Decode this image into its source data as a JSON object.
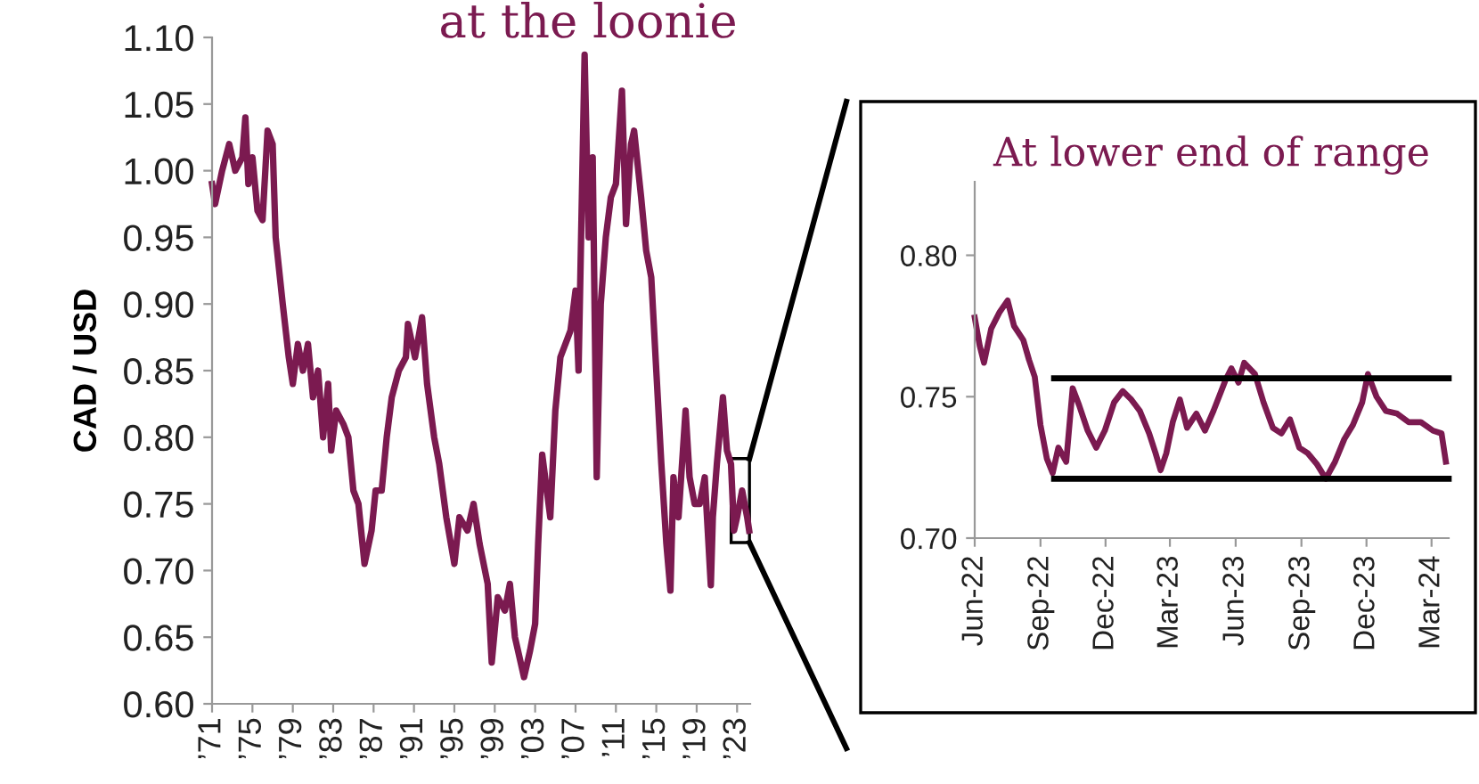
{
  "chart_data": [
    {
      "type": "line",
      "title": "at the loonie",
      "ylabel": "CAD / USD",
      "grid": false,
      "legend": false,
      "marker": "none",
      "line_style": "solid",
      "xlim": [
        1971,
        2024.3
      ],
      "ylim": [
        0.6,
        1.1
      ],
      "xticks": [
        {
          "value": 1971,
          "label": "’71"
        },
        {
          "value": 1975,
          "label": "’75"
        },
        {
          "value": 1979,
          "label": "’79"
        },
        {
          "value": 1983,
          "label": "’83"
        },
        {
          "value": 1987,
          "label": "’87"
        },
        {
          "value": 1991,
          "label": "’91"
        },
        {
          "value": 1995,
          "label": "’95"
        },
        {
          "value": 1999,
          "label": "’99"
        },
        {
          "value": 2003,
          "label": "’03"
        },
        {
          "value": 2007,
          "label": "’07"
        },
        {
          "value": 2011,
          "label": "’11"
        },
        {
          "value": 2015,
          "label": "’15"
        },
        {
          "value": 2019,
          "label": "’19"
        },
        {
          "value": 2023,
          "label": "’23"
        }
      ],
      "yticks": [
        {
          "value": 0.6,
          "label": "0.60"
        },
        {
          "value": 0.65,
          "label": "0.65"
        },
        {
          "value": 0.7,
          "label": "0.70"
        },
        {
          "value": 0.75,
          "label": "0.75"
        },
        {
          "value": 0.8,
          "label": "0.80"
        },
        {
          "value": 0.85,
          "label": "0.85"
        },
        {
          "value": 0.9,
          "label": "0.90"
        },
        {
          "value": 0.95,
          "label": "0.95"
        },
        {
          "value": 1.0,
          "label": "1.00"
        },
        {
          "value": 1.05,
          "label": "1.05"
        },
        {
          "value": 1.1,
          "label": "1.10"
        }
      ],
      "series": [
        {
          "color": "#7b1a50",
          "x": [
            1971.0,
            1971.3,
            1972.0,
            1972.7,
            1973.3,
            1974.0,
            1974.3,
            1974.6,
            1975.0,
            1975.5,
            1976.0,
            1976.5,
            1977.0,
            1977.3,
            1978.0,
            1978.6,
            1979.0,
            1979.5,
            1980.0,
            1980.5,
            1981.0,
            1981.5,
            1982.0,
            1982.5,
            1982.8,
            1983.3,
            1984.0,
            1984.5,
            1985.0,
            1985.5,
            1986.1,
            1986.8,
            1987.2,
            1987.8,
            1988.3,
            1988.8,
            1989.5,
            1990.2,
            1990.4,
            1991.1,
            1991.8,
            1992.3,
            1993.0,
            1993.5,
            1994.2,
            1995.0,
            1995.5,
            1996.3,
            1996.9,
            1997.5,
            1998.3,
            1998.7,
            1999.3,
            2000.0,
            2000.5,
            2001.0,
            2001.9,
            2002.5,
            2003.0,
            2003.3,
            2003.7,
            2004.5,
            2005.0,
            2005.5,
            2006.5,
            2007.0,
            2007.3,
            2007.9,
            2008.3,
            2008.7,
            2009.1,
            2009.5,
            2010.0,
            2010.5,
            2011.0,
            2011.6,
            2012.0,
            2012.5,
            2012.8,
            2013.5,
            2014.0,
            2014.5,
            2015.0,
            2015.5,
            2016.0,
            2016.4,
            2016.7,
            2017.2,
            2017.9,
            2018.3,
            2018.8,
            2019.3,
            2019.8,
            2020.4,
            2020.6,
            2021.0,
            2021.6,
            2022.0,
            2022.4,
            2022.7,
            2023.0,
            2023.5,
            2024.0,
            2024.2
          ],
          "values": [
            0.99,
            0.975,
            1.0,
            1.02,
            1.0,
            1.01,
            1.04,
            0.99,
            1.01,
            0.97,
            0.963,
            1.03,
            1.02,
            0.95,
            0.9,
            0.86,
            0.84,
            0.87,
            0.85,
            0.87,
            0.83,
            0.85,
            0.8,
            0.84,
            0.79,
            0.82,
            0.81,
            0.8,
            0.76,
            0.75,
            0.705,
            0.73,
            0.76,
            0.76,
            0.8,
            0.83,
            0.85,
            0.86,
            0.885,
            0.86,
            0.89,
            0.84,
            0.8,
            0.78,
            0.74,
            0.705,
            0.74,
            0.73,
            0.75,
            0.72,
            0.69,
            0.631,
            0.68,
            0.67,
            0.69,
            0.65,
            0.62,
            0.64,
            0.66,
            0.72,
            0.787,
            0.74,
            0.82,
            0.86,
            0.88,
            0.91,
            0.85,
            1.087,
            0.95,
            1.01,
            0.77,
            0.9,
            0.95,
            0.98,
            0.99,
            1.06,
            0.96,
            1.02,
            1.03,
            0.98,
            0.94,
            0.92,
            0.85,
            0.78,
            0.72,
            0.685,
            0.77,
            0.74,
            0.82,
            0.77,
            0.75,
            0.75,
            0.77,
            0.689,
            0.74,
            0.78,
            0.83,
            0.79,
            0.78,
            0.73,
            0.74,
            0.76,
            0.74,
            0.73
          ]
        }
      ]
    },
    {
      "type": "line",
      "title": "At lower end of range",
      "grid": false,
      "legend": false,
      "marker": "none",
      "line_style": "solid",
      "xlim": [
        "2022-06-01",
        "2024-03-25"
      ],
      "ylim": [
        0.7,
        0.826
      ],
      "xticks": [
        {
          "value": "2022-06-01",
          "label": "Jun-22"
        },
        {
          "value": "2022-09-01",
          "label": "Sep-22"
        },
        {
          "value": "2022-12-01",
          "label": "Dec-22"
        },
        {
          "value": "2023-03-01",
          "label": "Mar-23"
        },
        {
          "value": "2023-06-01",
          "label": "Jun-23"
        },
        {
          "value": "2023-09-01",
          "label": "Sep-23"
        },
        {
          "value": "2023-12-01",
          "label": "Dec-23"
        },
        {
          "value": "2024-03-01",
          "label": "Mar-24"
        }
      ],
      "yticks": [
        {
          "value": 0.7,
          "label": "0.70"
        },
        {
          "value": 0.75,
          "label": "0.75"
        },
        {
          "value": 0.8,
          "label": "0.80"
        }
      ],
      "series": [
        {
          "color": "#7b1a50",
          "x": [
            "2022-06-01",
            "2022-06-08",
            "2022-06-14",
            "2022-06-24",
            "2022-07-06",
            "2022-07-17",
            "2022-07-26",
            "2022-08-08",
            "2022-08-16",
            "2022-08-24",
            "2022-09-01",
            "2022-09-10",
            "2022-09-18",
            "2022-09-26",
            "2022-10-07",
            "2022-10-16",
            "2022-10-25",
            "2022-11-06",
            "2022-11-18",
            "2022-11-30",
            "2022-12-13",
            "2022-12-25",
            "2023-01-06",
            "2023-01-18",
            "2023-01-31",
            "2023-02-09",
            "2023-02-16",
            "2023-02-24",
            "2023-03-05",
            "2023-03-15",
            "2023-03-25",
            "2023-04-07",
            "2023-04-19",
            "2023-05-01",
            "2023-05-18",
            "2023-05-26",
            "2023-06-05",
            "2023-06-13",
            "2023-06-28",
            "2023-07-10",
            "2023-07-23",
            "2023-08-04",
            "2023-08-16",
            "2023-08-29",
            "2023-09-10",
            "2023-09-23",
            "2023-10-05",
            "2023-10-18",
            "2023-10-31",
            "2023-11-12",
            "2023-11-25",
            "2023-12-03",
            "2023-12-15",
            "2023-12-28",
            "2024-01-13",
            "2024-01-29",
            "2024-02-15",
            "2024-03-03",
            "2024-03-15",
            "2024-03-21"
          ],
          "values": [
            0.778,
            0.768,
            0.762,
            0.774,
            0.78,
            0.784,
            0.775,
            0.77,
            0.763,
            0.757,
            0.74,
            0.728,
            0.723,
            0.732,
            0.727,
            0.753,
            0.747,
            0.738,
            0.732,
            0.738,
            0.748,
            0.752,
            0.749,
            0.745,
            0.737,
            0.73,
            0.724,
            0.73,
            0.741,
            0.749,
            0.739,
            0.744,
            0.738,
            0.745,
            0.756,
            0.76,
            0.755,
            0.762,
            0.758,
            0.748,
            0.739,
            0.737,
            0.742,
            0.732,
            0.73,
            0.726,
            0.721,
            0.727,
            0.735,
            0.74,
            0.748,
            0.758,
            0.75,
            0.745,
            0.744,
            0.741,
            0.741,
            0.738,
            0.737,
            0.727
          ]
        },
        {
          "type": "line",
          "color": "#000000",
          "x": [
            "2022-09-20",
            "2024-03-25"
          ],
          "values": [
            0.7565,
            0.7565
          ]
        },
        {
          "type": "line",
          "color": "#000000",
          "x": [
            "2022-09-20",
            "2024-03-25"
          ],
          "values": [
            0.721,
            0.721
          ]
        }
      ]
    }
  ]
}
